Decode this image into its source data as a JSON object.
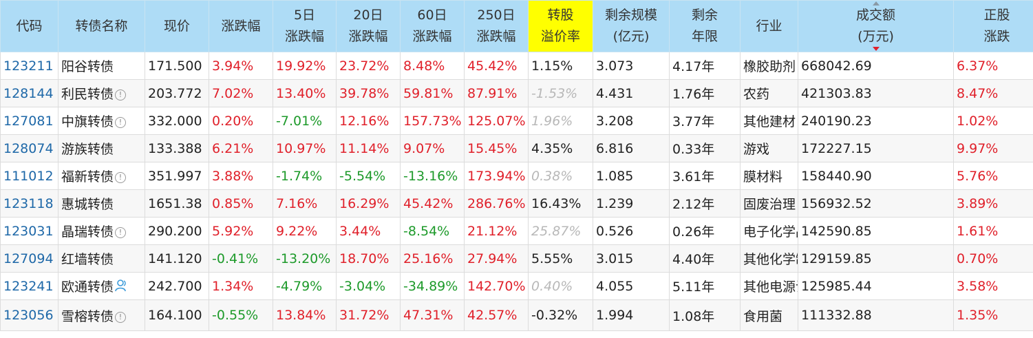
{
  "headers": {
    "code": "代码",
    "name": "转债名称",
    "price": "现价",
    "change": "涨跌幅",
    "d5_l1": "5日",
    "d5_l2": "涨跌幅",
    "d20_l1": "20日",
    "d20_l2": "涨跌幅",
    "d60_l1": "60日",
    "d60_l2": "涨跌幅",
    "d250_l1": "250日",
    "d250_l2": "涨跌幅",
    "prem_l1": "转股",
    "prem_l2": "溢价率",
    "scale_l1": "剩余规模",
    "scale_l2": "(亿元)",
    "years_l1": "剩余",
    "years_l2": "年限",
    "industry": "行业",
    "turnover_l1": "成交额",
    "turnover_l2": "(万元)",
    "stock_l1": "正股",
    "stock_l2": "涨跌"
  },
  "colors": {
    "header_bg": "#aedcf6",
    "highlight": "#ffff00",
    "up": "#e0202a",
    "down": "#1d9a2a",
    "code": "#1e68a8"
  },
  "rows": [
    {
      "code": "123211",
      "name": "阳谷转债",
      "icon": "",
      "price": "171.500",
      "change": "3.94%",
      "d5": "19.92%",
      "d20": "23.72%",
      "d60": "8.48%",
      "d250": "45.42%",
      "premium": "1.15%",
      "premium_style": "normal",
      "scale": "3.073",
      "years": "4.17年",
      "industry": "橡胶助剂",
      "turnover": "668042.69",
      "stock": "6.37%"
    },
    {
      "code": "128144",
      "name": "利民转债",
      "icon": "info",
      "price": "203.772",
      "change": "7.02%",
      "d5": "13.40%",
      "d20": "39.78%",
      "d60": "59.81%",
      "d250": "87.91%",
      "premium": "-1.53%",
      "premium_style": "muted",
      "scale": "4.431",
      "years": "1.76年",
      "industry": "农药",
      "turnover": "421303.83",
      "stock": "8.47%"
    },
    {
      "code": "127081",
      "name": "中旗转债",
      "icon": "info",
      "price": "332.000",
      "change": "0.20%",
      "d5": "-7.01%",
      "d20": "12.16%",
      "d60": "157.73%",
      "d250": "125.07%",
      "premium": "1.96%",
      "premium_style": "muted",
      "scale": "3.208",
      "years": "3.77年",
      "industry": "其他建材",
      "turnover": "240190.23",
      "stock": "1.02%"
    },
    {
      "code": "128074",
      "name": "游族转债",
      "icon": "",
      "price": "133.388",
      "change": "6.21%",
      "d5": "10.97%",
      "d20": "11.14%",
      "d60": "9.07%",
      "d250": "15.45%",
      "premium": "4.35%",
      "premium_style": "normal",
      "scale": "6.816",
      "years": "0.33年",
      "industry": "游戏",
      "turnover": "172227.15",
      "stock": "9.97%"
    },
    {
      "code": "111012",
      "name": "福新转债",
      "icon": "info",
      "price": "351.997",
      "change": "3.88%",
      "d5": "-1.74%",
      "d20": "-5.54%",
      "d60": "-13.16%",
      "d250": "173.94%",
      "premium": "0.38%",
      "premium_style": "muted",
      "scale": "1.085",
      "years": "3.61年",
      "industry": "膜材料",
      "turnover": "158440.90",
      "stock": "5.76%"
    },
    {
      "code": "123118",
      "name": "惠城转债",
      "icon": "",
      "price": "1651.38",
      "change": "0.85%",
      "d5": "7.16%",
      "d20": "16.29%",
      "d60": "45.42%",
      "d250": "286.76%",
      "premium": "16.43%",
      "premium_style": "normal",
      "scale": "1.239",
      "years": "2.12年",
      "industry": "固废治理",
      "turnover": "156932.52",
      "stock": "3.89%"
    },
    {
      "code": "123031",
      "name": "晶瑞转债",
      "icon": "info",
      "price": "290.200",
      "change": "5.92%",
      "d5": "9.22%",
      "d20": "3.44%",
      "d60": "-8.54%",
      "d250": "21.12%",
      "premium": "25.87%",
      "premium_style": "muted",
      "scale": "0.526",
      "years": "0.26年",
      "industry": "电子化学品",
      "turnover": "142590.85",
      "stock": "1.61%"
    },
    {
      "code": "127094",
      "name": "红墙转债",
      "icon": "",
      "price": "141.120",
      "change": "-0.41%",
      "d5": "-13.20%",
      "d20": "18.70%",
      "d60": "25.16%",
      "d250": "27.94%",
      "premium": "5.55%",
      "premium_style": "normal",
      "scale": "3.015",
      "years": "4.40年",
      "industry": "其他化学制品",
      "turnover": "129159.85",
      "stock": "0.70%"
    },
    {
      "code": "123241",
      "name": "欧通转债",
      "icon": "user",
      "price": "242.700",
      "change": "1.34%",
      "d5": "-4.79%",
      "d20": "-3.04%",
      "d60": "-34.89%",
      "d250": "142.70%",
      "premium": "0.40%",
      "premium_style": "muted",
      "scale": "4.055",
      "years": "5.11年",
      "industry": "其他电源设备",
      "turnover": "125985.44",
      "stock": "3.58%"
    },
    {
      "code": "123056",
      "name": "雪榕转债",
      "icon": "info",
      "price": "164.100",
      "change": "-0.55%",
      "d5": "13.84%",
      "d20": "31.72%",
      "d60": "47.31%",
      "d250": "42.57%",
      "premium": "-0.32%",
      "premium_style": "normal",
      "scale": "1.994",
      "years": "1.08年",
      "industry": "食用菌",
      "turnover": "111332.88",
      "stock": "1.35%"
    }
  ]
}
